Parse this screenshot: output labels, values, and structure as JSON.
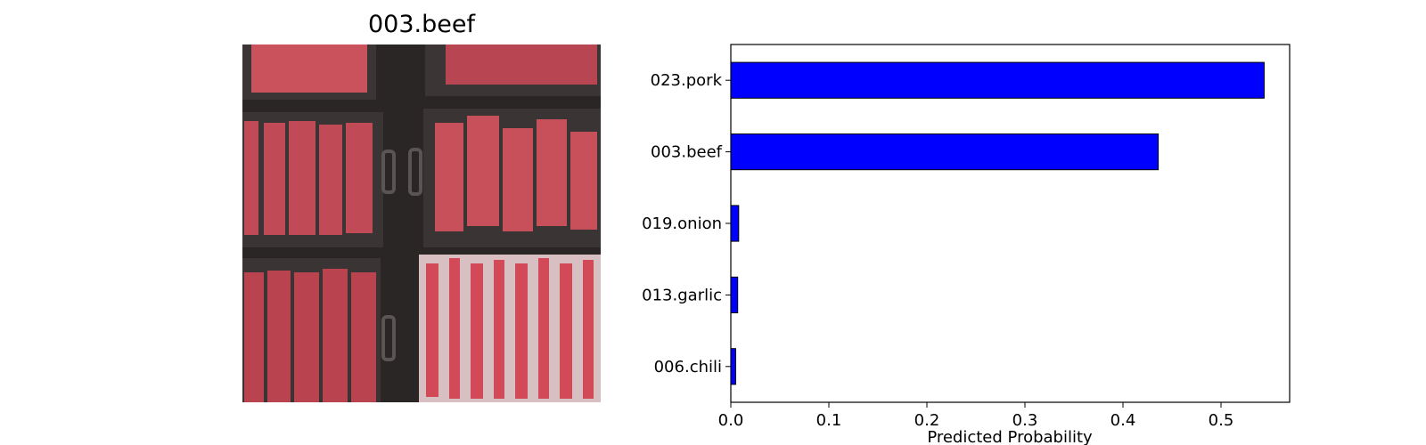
{
  "image_panel": {
    "title": "003.beef"
  },
  "chart_data": {
    "type": "bar",
    "orientation": "horizontal",
    "categories": [
      "023.pork",
      "003.beef",
      "019.onion",
      "013.garlic",
      "006.chili"
    ],
    "values": [
      0.544,
      0.436,
      0.008,
      0.007,
      0.005
    ],
    "xlabel": "Predicted Probability",
    "ylabel": "",
    "title": "",
    "xlim": [
      0,
      0.57
    ],
    "xticks": [
      "0.0",
      "0.1",
      "0.2",
      "0.3",
      "0.4",
      "0.5"
    ],
    "bar_color": "#0000ff",
    "bar_edge_color": "#000000",
    "grid": false
  }
}
